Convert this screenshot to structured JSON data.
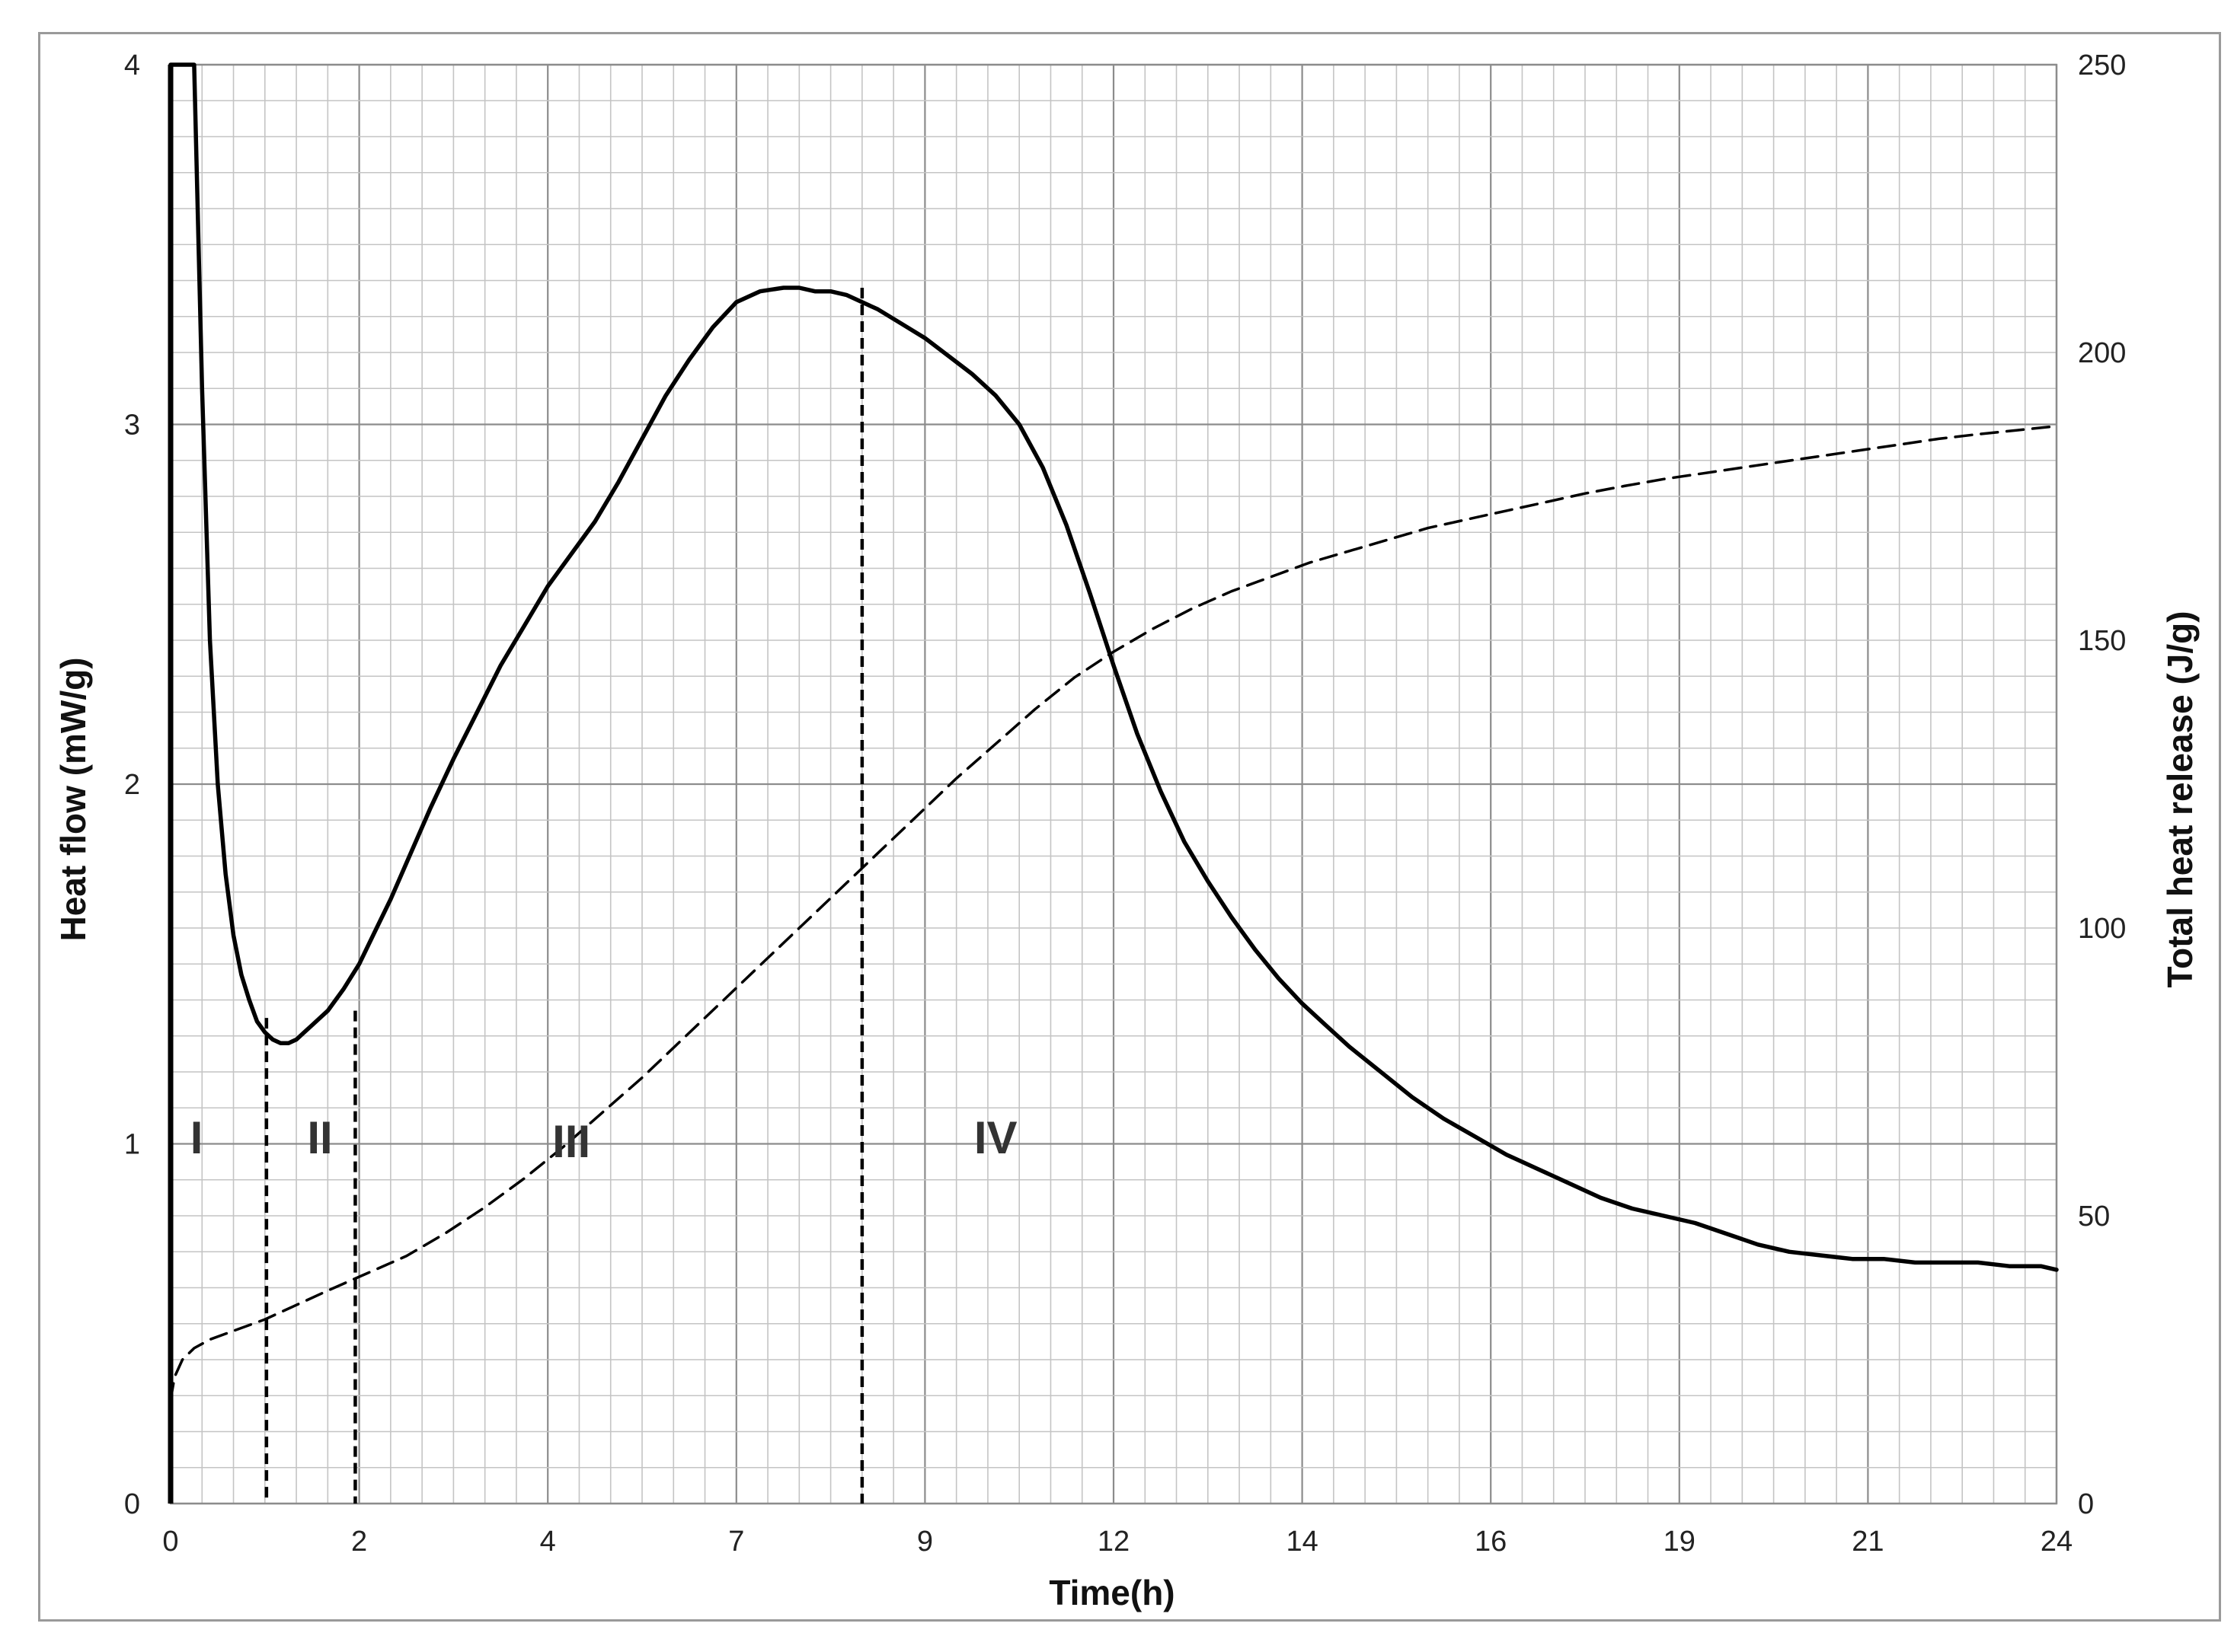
{
  "chart_data": {
    "type": "line",
    "title": "",
    "xlabel": "Time(h)",
    "ylabel": "Heat flow (mW/g)",
    "y2label": "Total heat release (J/g)",
    "x_tick_labels": [
      "0",
      "2",
      "4",
      "7",
      "9",
      "12",
      "14",
      "16",
      "19",
      "21",
      "24"
    ],
    "y_ticks": [
      0,
      1,
      2,
      3,
      4
    ],
    "y2_ticks": [
      0,
      50,
      100,
      150,
      200,
      250
    ],
    "xlim": [
      0,
      24
    ],
    "ylim": [
      0,
      4
    ],
    "y2lim": [
      0,
      250
    ],
    "grid": true,
    "series": [
      {
        "style": "solid",
        "axis": "left",
        "x": [
          0.0,
          0.1,
          0.2,
          0.3,
          0.4,
          0.5,
          0.6,
          0.7,
          0.8,
          0.9,
          1.0,
          1.1,
          1.2,
          1.3,
          1.4,
          1.5,
          1.6,
          1.7,
          1.8,
          1.9,
          2.0,
          2.2,
          2.4,
          2.6,
          2.8,
          3.0,
          3.3,
          3.6,
          3.9,
          4.2,
          4.5,
          4.8,
          5.1,
          5.4,
          5.7,
          6.0,
          6.3,
          6.6,
          6.9,
          7.2,
          7.5,
          7.8,
          8.0,
          8.2,
          8.4,
          8.6,
          8.8,
          9.0,
          9.3,
          9.6,
          9.9,
          10.2,
          10.5,
          10.8,
          11.1,
          11.4,
          11.7,
          12.0,
          12.3,
          12.6,
          12.9,
          13.2,
          13.5,
          13.8,
          14.1,
          14.4,
          14.7,
          15.0,
          15.4,
          15.8,
          16.2,
          16.6,
          17.0,
          17.4,
          17.8,
          18.2,
          18.6,
          19.0,
          19.4,
          19.8,
          20.2,
          20.6,
          21.0,
          21.4,
          21.8,
          22.2,
          22.6,
          23.0,
          23.4,
          23.8,
          24.0
        ],
        "y": [
          4.0,
          4.0,
          4.0,
          4.0,
          3.1,
          2.4,
          2.0,
          1.75,
          1.58,
          1.47,
          1.4,
          1.34,
          1.31,
          1.29,
          1.28,
          1.28,
          1.29,
          1.31,
          1.33,
          1.35,
          1.37,
          1.43,
          1.5,
          1.59,
          1.68,
          1.78,
          1.93,
          2.07,
          2.2,
          2.33,
          2.44,
          2.55,
          2.64,
          2.73,
          2.84,
          2.96,
          3.08,
          3.18,
          3.27,
          3.34,
          3.37,
          3.38,
          3.38,
          3.37,
          3.37,
          3.36,
          3.34,
          3.32,
          3.28,
          3.24,
          3.19,
          3.14,
          3.08,
          3.0,
          2.88,
          2.72,
          2.53,
          2.33,
          2.14,
          1.98,
          1.84,
          1.73,
          1.63,
          1.54,
          1.46,
          1.39,
          1.33,
          1.27,
          1.2,
          1.13,
          1.07,
          1.02,
          0.97,
          0.93,
          0.89,
          0.85,
          0.82,
          0.8,
          0.78,
          0.75,
          0.72,
          0.7,
          0.69,
          0.68,
          0.68,
          0.67,
          0.67,
          0.67,
          0.66,
          0.66,
          0.65
        ]
      },
      {
        "style": "dashed",
        "axis": "right",
        "x": [
          0.0,
          0.05,
          0.15,
          0.3,
          0.5,
          0.8,
          1.2,
          1.6,
          2.0,
          2.5,
          3.0,
          3.5,
          4.0,
          4.5,
          5.0,
          5.5,
          6.0,
          6.5,
          7.0,
          7.5,
          8.0,
          8.5,
          9.0,
          9.5,
          10.0,
          10.5,
          11.0,
          11.5,
          12.0,
          12.5,
          13.0,
          13.5,
          14.0,
          14.5,
          15.0,
          15.5,
          16.0,
          16.5,
          17.0,
          17.5,
          18.0,
          18.5,
          19.0,
          19.5,
          20.0,
          20.5,
          21.0,
          21.5,
          22.0,
          22.5,
          23.0,
          23.5,
          24.0
        ],
        "y": [
          18,
          22,
          25,
          27,
          28.5,
          30,
          32,
          34.5,
          37,
          40,
          43,
          47,
          51.5,
          56.5,
          62,
          68,
          74,
          80.5,
          87,
          93.5,
          100,
          106.5,
          113,
          119.5,
          126,
          132,
          138,
          143.5,
          148,
          152,
          155.5,
          158.5,
          161,
          163.5,
          165.5,
          167.5,
          169.5,
          171,
          172.5,
          174,
          175.5,
          176.8,
          178,
          179,
          180,
          181,
          182,
          183,
          184,
          185,
          185.8,
          186.5,
          187.2
        ]
      }
    ],
    "annotations": [
      {
        "text": "I",
        "x": 0.33,
        "y": 1.02
      },
      {
        "text": "II",
        "x": 1.9,
        "y": 1.02
      },
      {
        "text": "III",
        "x": 5.1,
        "y": 1.01
      },
      {
        "text": "IV",
        "x": 10.5,
        "y": 1.02
      }
    ],
    "vertical_markers": [
      {
        "style": "dashed",
        "x": 1.22,
        "y_top": 1.35
      },
      {
        "style": "dashed",
        "x": 2.35,
        "y_top": 1.37
      },
      {
        "style": "dashed",
        "x": 8.8,
        "y_top": 3.38
      }
    ]
  }
}
